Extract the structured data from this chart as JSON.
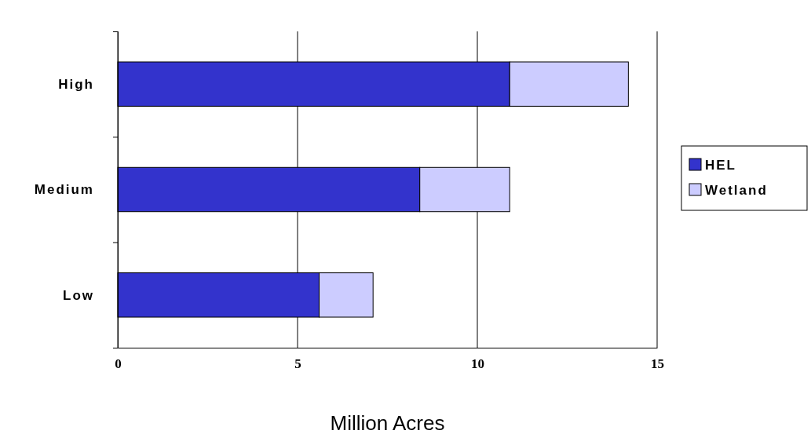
{
  "chart_data": {
    "type": "bar",
    "orientation": "horizontal",
    "stacked": true,
    "categories": [
      "High",
      "Medium",
      "Low"
    ],
    "series": [
      {
        "name": "HEL",
        "color": "#3333cc",
        "values": [
          10.9,
          8.4,
          5.6
        ]
      },
      {
        "name": "Wetland",
        "color": "#ccccff",
        "values": [
          3.3,
          2.5,
          1.5
        ]
      }
    ],
    "xlim": [
      0,
      15
    ],
    "xticks": [
      0,
      5,
      10,
      15
    ],
    "xlabel": "Million Acres",
    "grid": "x",
    "legend": "right"
  }
}
